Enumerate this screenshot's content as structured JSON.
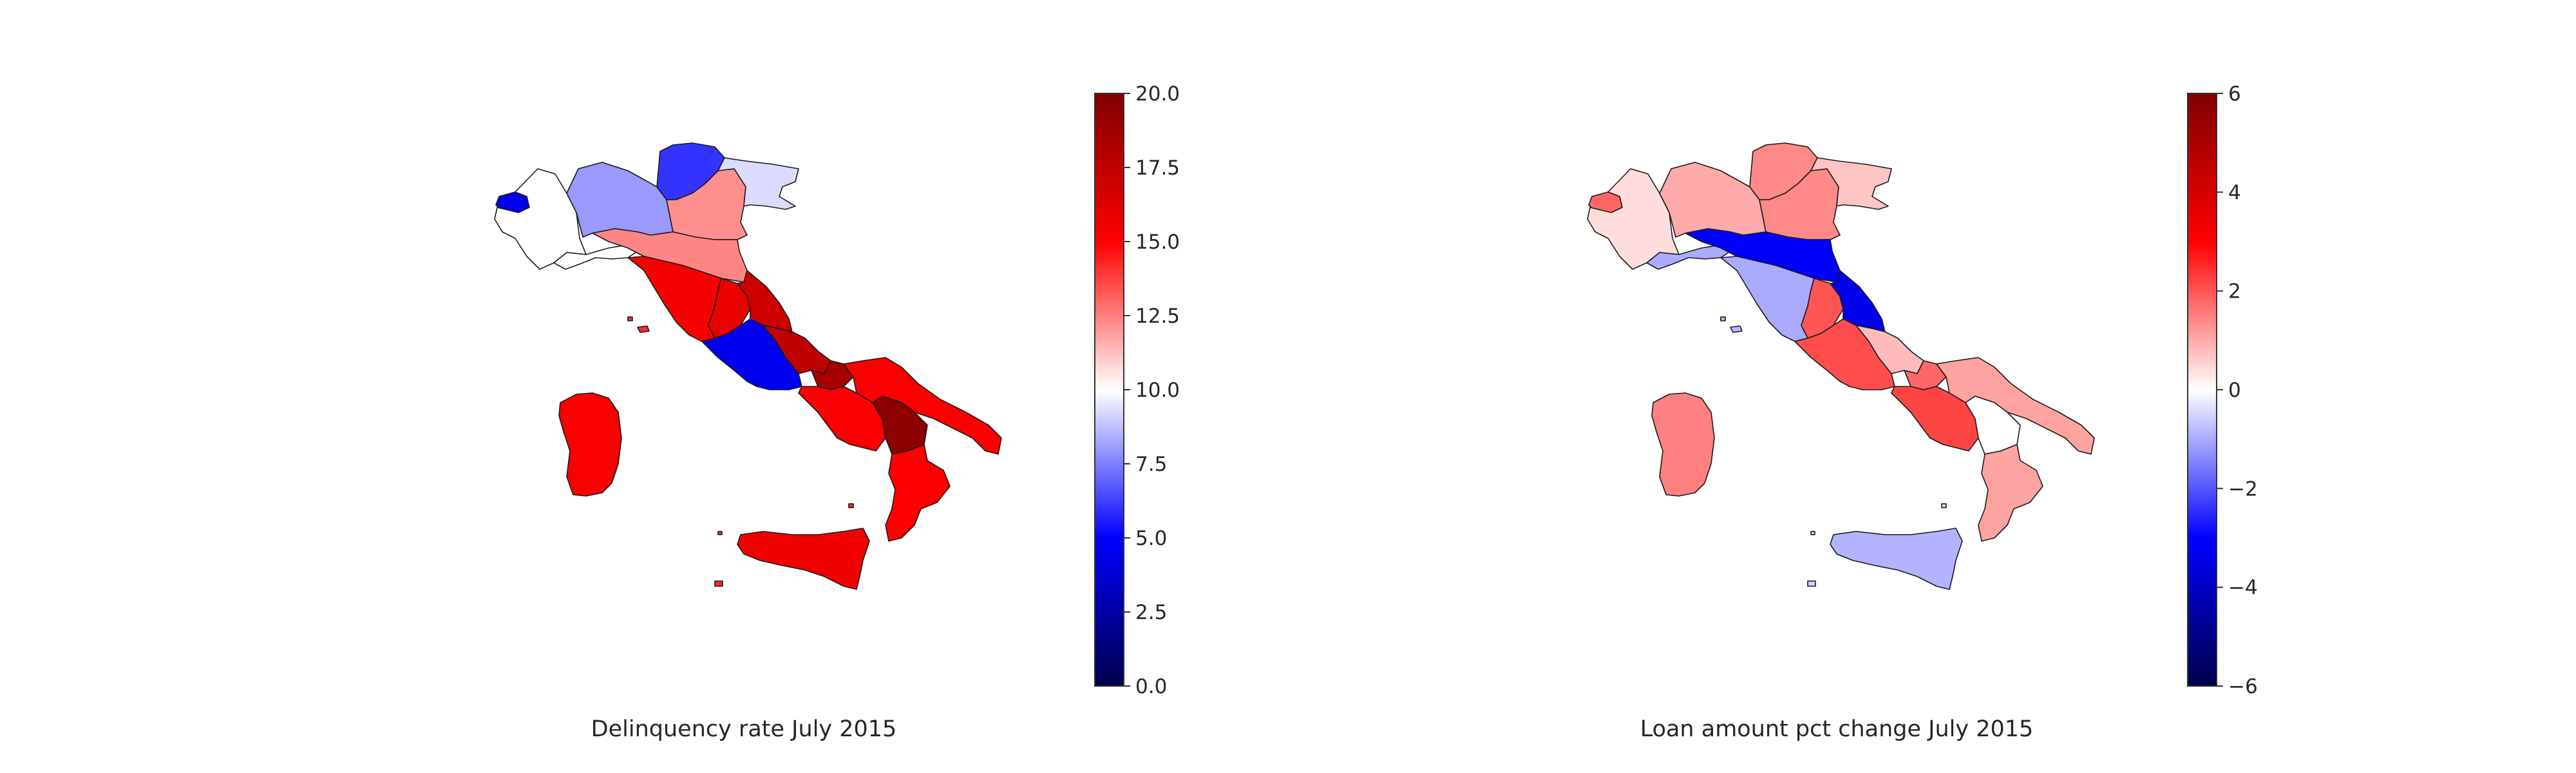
{
  "colormap": {
    "name": "seismic",
    "low": "#00004c",
    "mid_low": "#0000ff",
    "mid": "#ffffff",
    "mid_high": "#ff0000",
    "high": "#800000"
  },
  "maps": [
    {
      "title": "Delinquency rate July 2015",
      "colorbar": {
        "min": 0,
        "max": 20,
        "ticks": [
          "0.0",
          "2.5",
          "5.0",
          "7.5",
          "10.0",
          "12.5",
          "15.0",
          "17.5",
          "20.0"
        ]
      },
      "regions": [
        {
          "name": "Valle d'Aosta",
          "value": 4.5
        },
        {
          "name": "Piemonte",
          "value": 10.0
        },
        {
          "name": "Lombardia",
          "value": 8.0
        },
        {
          "name": "Trentino-Alto Adige",
          "value": 6.0
        },
        {
          "name": "Veneto",
          "value": 12.2
        },
        {
          "name": "Friuli-Venezia Giulia",
          "value": 9.3
        },
        {
          "name": "Liguria",
          "value": 10.0
        },
        {
          "name": "Emilia-Romagna",
          "value": 12.4
        },
        {
          "name": "Toscana",
          "value": 15.3
        },
        {
          "name": "Umbria",
          "value": 15.8
        },
        {
          "name": "Marche",
          "value": 17.0
        },
        {
          "name": "Lazio",
          "value": 4.6
        },
        {
          "name": "Abruzzo",
          "value": 17.5
        },
        {
          "name": "Molise",
          "value": 18.5
        },
        {
          "name": "Campania",
          "value": 15.2
        },
        {
          "name": "Puglia",
          "value": 15.1
        },
        {
          "name": "Basilicata",
          "value": 19.5
        },
        {
          "name": "Calabria",
          "value": 15.0
        },
        {
          "name": "Sicilia",
          "value": 15.5
        },
        {
          "name": "Sardegna",
          "value": 15.2
        }
      ]
    },
    {
      "title": "Loan amount pct change July 2015",
      "colorbar": {
        "min": -6,
        "max": 6,
        "ticks": [
          "−6",
          "−4",
          "−2",
          "0",
          "2",
          "4",
          "6"
        ]
      },
      "regions": [
        {
          "name": "Valle d'Aosta",
          "value": 1.8
        },
        {
          "name": "Piemonte",
          "value": 0.4
        },
        {
          "name": "Lombardia",
          "value": 1.0
        },
        {
          "name": "Trentino-Alto Adige",
          "value": 1.4
        },
        {
          "name": "Veneto",
          "value": 1.4
        },
        {
          "name": "Friuli-Venezia Giulia",
          "value": 0.7
        },
        {
          "name": "Liguria",
          "value": -1.0
        },
        {
          "name": "Emilia-Romagna",
          "value": -3.0
        },
        {
          "name": "Toscana",
          "value": -1.0
        },
        {
          "name": "Umbria",
          "value": 2.0
        },
        {
          "name": "Marche",
          "value": -3.3
        },
        {
          "name": "Lazio",
          "value": 2.1
        },
        {
          "name": "Abruzzo",
          "value": 0.8
        },
        {
          "name": "Molise",
          "value": 1.8
        },
        {
          "name": "Campania",
          "value": 2.2
        },
        {
          "name": "Puglia",
          "value": 1.1
        },
        {
          "name": "Basilicata",
          "value": 0.0
        },
        {
          "name": "Calabria",
          "value": 1.1
        },
        {
          "name": "Sicilia",
          "value": -0.9
        },
        {
          "name": "Sardegna",
          "value": 1.5
        }
      ]
    }
  ]
}
